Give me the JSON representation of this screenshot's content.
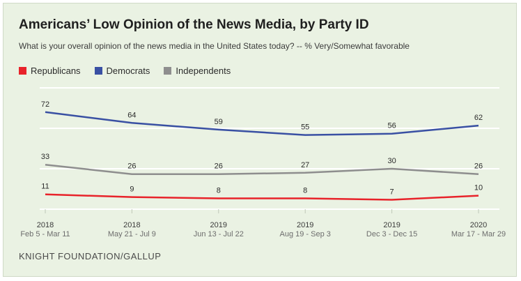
{
  "title": "Americans’ Low Opinion of the News Media, by Party ID",
  "subtitle": "What is your overall opinion of the news media in the United States today? -- % Very/Somewhat favorable",
  "source": "KNIGHT FOUNDATION/GALLUP",
  "colors": {
    "background": "#eaf2e3",
    "republicans": "#e8232a",
    "democrats": "#3950a3",
    "independents": "#8e8e8e",
    "gridline": "#ffffff"
  },
  "chart_data": {
    "type": "line",
    "title": "Americans’ Low Opinion of the News Media, by Party ID",
    "subtitle": "What is your overall opinion of the news media in the United States today? -- % Very/Somewhat favorable",
    "x_years": [
      "2018",
      "2018",
      "2019",
      "2019",
      "2019",
      "2020"
    ],
    "x_ranges": [
      "Feb 5 - Mar 11",
      "May 21 - Jul 9",
      "Jun 13 - Jul 22",
      "Aug 19 - Sep  3",
      "Dec 3 - Dec 15",
      "Mar 17 - Mar 29"
    ],
    "ylim": [
      0,
      90
    ],
    "grid": true,
    "legend_position": "top-left",
    "series": [
      {
        "name": "Republicans",
        "color": "#e8232a",
        "values": [
          11,
          9,
          8,
          8,
          7,
          10
        ]
      },
      {
        "name": "Democrats",
        "color": "#3950a3",
        "values": [
          72,
          64,
          59,
          55,
          56,
          62
        ]
      },
      {
        "name": "Independents",
        "color": "#8e8e8e",
        "values": [
          33,
          26,
          26,
          27,
          30,
          26
        ]
      }
    ]
  }
}
